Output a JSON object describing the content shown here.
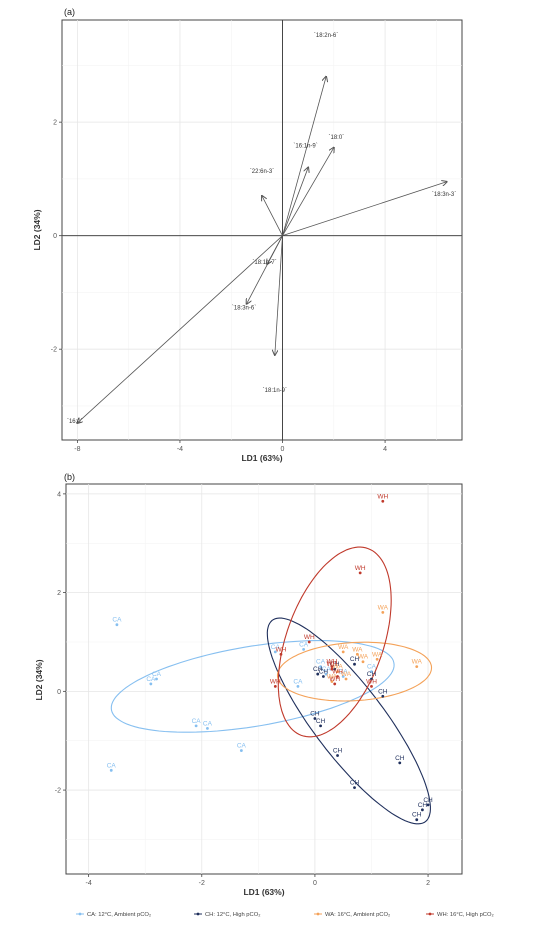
{
  "chart_data": [
    {
      "type": "biplot",
      "panel_label": "(a)",
      "xlabel": "LD1 (63%)",
      "ylabel": "LD2 (34%)",
      "xlim": [
        -8.6,
        7.0
      ],
      "ylim": [
        -3.6,
        3.8
      ],
      "xticks": [
        -8,
        -4,
        0,
        4
      ],
      "yticks": [
        -2,
        0,
        2
      ],
      "grid": true,
      "vectors": [
        {
          "label": "`18:2n-6`",
          "x": 1.7,
          "y": 2.8,
          "lx": 1.7,
          "ly": 3.5
        },
        {
          "label": "`18:0`",
          "x": 2.0,
          "y": 1.55,
          "lx": 2.1,
          "ly": 1.7
        },
        {
          "label": "`16:1n-9`",
          "x": 1.0,
          "y": 1.2,
          "lx": 0.9,
          "ly": 1.55
        },
        {
          "label": "`22:6n-3`",
          "x": -0.8,
          "y": 0.7,
          "lx": -0.8,
          "ly": 1.1
        },
        {
          "label": "`18:3n-3`",
          "x": 6.4,
          "y": 0.95,
          "lx": 6.3,
          "ly": 0.7
        },
        {
          "label": "`18:1n-7`",
          "x": -0.6,
          "y": -0.5,
          "lx": -0.7,
          "ly": -0.5
        },
        {
          "label": "`18:3n-6`",
          "x": -1.4,
          "y": -1.2,
          "lx": -1.5,
          "ly": -1.3
        },
        {
          "label": "`18:1n-9`",
          "x": -0.3,
          "y": -2.1,
          "lx": -0.3,
          "ly": -2.75
        },
        {
          "label": "`16:0`",
          "x": -8.0,
          "y": -3.3,
          "lx": -8.1,
          "ly": -3.3
        }
      ]
    },
    {
      "type": "scatter",
      "panel_label": "(b)",
      "xlabel": "LD1 (63%)",
      "ylabel": "LD2 (34%)",
      "xlim": [
        -4.4,
        2.6
      ],
      "ylim": [
        -3.7,
        4.2
      ],
      "xticks": [
        -4,
        -2,
        0,
        2
      ],
      "yticks": [
        -2,
        0,
        2,
        4
      ],
      "grid": true,
      "legend_position": "bottom",
      "series": [
        {
          "name": "CA: 12°C, Ambient pCO₂",
          "label": "CA",
          "color": "#86bff0",
          "points": [
            [
              -3.5,
              1.35
            ],
            [
              -2.9,
              0.15
            ],
            [
              -2.8,
              0.25
            ],
            [
              -2.1,
              -0.7
            ],
            [
              -1.9,
              -0.75
            ],
            [
              -1.3,
              -1.2
            ],
            [
              -3.6,
              -1.6
            ],
            [
              -0.7,
              0.8
            ],
            [
              -0.2,
              0.85
            ],
            [
              -0.3,
              0.1
            ],
            [
              0.1,
              0.5
            ],
            [
              0.2,
              0.35
            ],
            [
              1.0,
              0.4
            ],
            [
              0.5,
              0.3
            ]
          ],
          "ellipse": {
            "cx": -1.1,
            "cy": 0.1,
            "rx": 4.1,
            "ry": 1.3,
            "angle": 11
          }
        },
        {
          "name": "CH: 12°C, High pCO₂",
          "label": "CH",
          "color": "#1f2f5c",
          "points": [
            [
              0.05,
              0.35
            ],
            [
              0.15,
              0.3
            ],
            [
              0.35,
              0.45
            ],
            [
              0.7,
              0.55
            ],
            [
              1.0,
              0.25
            ],
            [
              1.2,
              -0.1
            ],
            [
              0.0,
              -0.55
            ],
            [
              0.1,
              -0.7
            ],
            [
              0.4,
              -1.3
            ],
            [
              0.7,
              -1.95
            ],
            [
              1.5,
              -1.45
            ],
            [
              1.8,
              -2.6
            ],
            [
              1.9,
              -2.4
            ],
            [
              2.0,
              -2.3
            ]
          ],
          "ellipse": {
            "cx": 0.6,
            "cy": -0.6,
            "rx": 3.95,
            "ry": 1.05,
            "angle": -57
          }
        },
        {
          "name": "WA: 16°C, Ambient pCO₂",
          "label": "WA",
          "color": "#f4a259",
          "points": [
            [
              0.3,
              0.2
            ],
            [
              0.4,
              0.4
            ],
            [
              0.5,
              0.8
            ],
            [
              0.75,
              0.75
            ],
            [
              0.85,
              0.6
            ],
            [
              1.1,
              0.65
            ],
            [
              1.2,
              1.6
            ],
            [
              1.8,
              0.5
            ],
            [
              0.55,
              0.25
            ]
          ],
          "ellipse": {
            "cx": 0.7,
            "cy": 0.4,
            "rx": 2.2,
            "ry": 0.95,
            "angle": 4
          }
        },
        {
          "name": "WH: 16°C, High pCO₂",
          "label": "WH",
          "color": "#c0392b",
          "points": [
            [
              -0.6,
              0.75
            ],
            [
              -0.1,
              1.0
            ],
            [
              -0.7,
              0.1
            ],
            [
              0.3,
              0.45
            ],
            [
              0.4,
              0.3
            ],
            [
              0.35,
              0.15
            ],
            [
              1.0,
              0.1
            ],
            [
              0.8,
              2.4
            ],
            [
              1.2,
              3.85
            ],
            [
              0.3,
              0.5
            ]
          ],
          "ellipse": {
            "cx": 0.35,
            "cy": 1.0,
            "rx": 3.2,
            "ry": 1.4,
            "angle": 74
          }
        }
      ]
    }
  ]
}
